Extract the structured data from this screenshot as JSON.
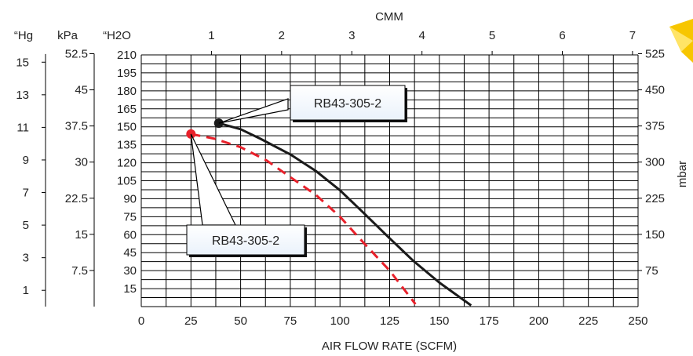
{
  "chart_data": {
    "type": "line",
    "xlabel": "AIR FLOW RATE (SCFM)",
    "xlim": [
      0,
      250
    ],
    "x_ticks": [
      "0",
      "25",
      "50",
      "75",
      "100",
      "125",
      "150",
      "175",
      "200",
      "225",
      "250"
    ],
    "top_axis_label": "CMM",
    "top_ticks": [
      "1",
      "2",
      "3",
      "4",
      "5",
      "6",
      "7"
    ],
    "left_axes": [
      {
        "label": "“Hg",
        "ticks": [
          "15",
          "13",
          "11",
          "9",
          "7",
          "5",
          "3",
          "1"
        ]
      },
      {
        "label": "kPa",
        "ticks": [
          "52.5",
          "45",
          "37.5",
          "30",
          "22.5",
          "15",
          "7.5"
        ]
      },
      {
        "label": "“H2O",
        "ticks": [
          "210",
          "195",
          "180",
          "165",
          "150",
          "135",
          "120",
          "105",
          "90",
          "75",
          "60",
          "45",
          "30",
          "15"
        ]
      }
    ],
    "ylim": [
      0,
      210
    ],
    "right_axis": {
      "label": "mbar",
      "ticks": [
        "525",
        "450",
        "375",
        "300",
        "225",
        "150",
        "75"
      ]
    },
    "grid": true,
    "series": [
      {
        "name": "RB43-305-2",
        "color": "#1a1a1a",
        "dash": "solid",
        "callout": "RB43-305-2",
        "x": [
          39,
          50,
          60,
          75,
          88,
          100,
          112,
          125,
          137,
          150,
          166
        ],
        "y": [
          153,
          148,
          140,
          127,
          113,
          97,
          78,
          57,
          38,
          20,
          1
        ]
      },
      {
        "name": "RB43-305-2",
        "color": "#e8202a",
        "dash": "dashed",
        "callout": "RB43-305-2",
        "x": [
          25,
          37,
          50,
          63,
          75,
          88,
          100,
          112,
          125,
          138
        ],
        "y": [
          144,
          140,
          133,
          122,
          108,
          93,
          75,
          53,
          30,
          2
        ]
      }
    ]
  }
}
